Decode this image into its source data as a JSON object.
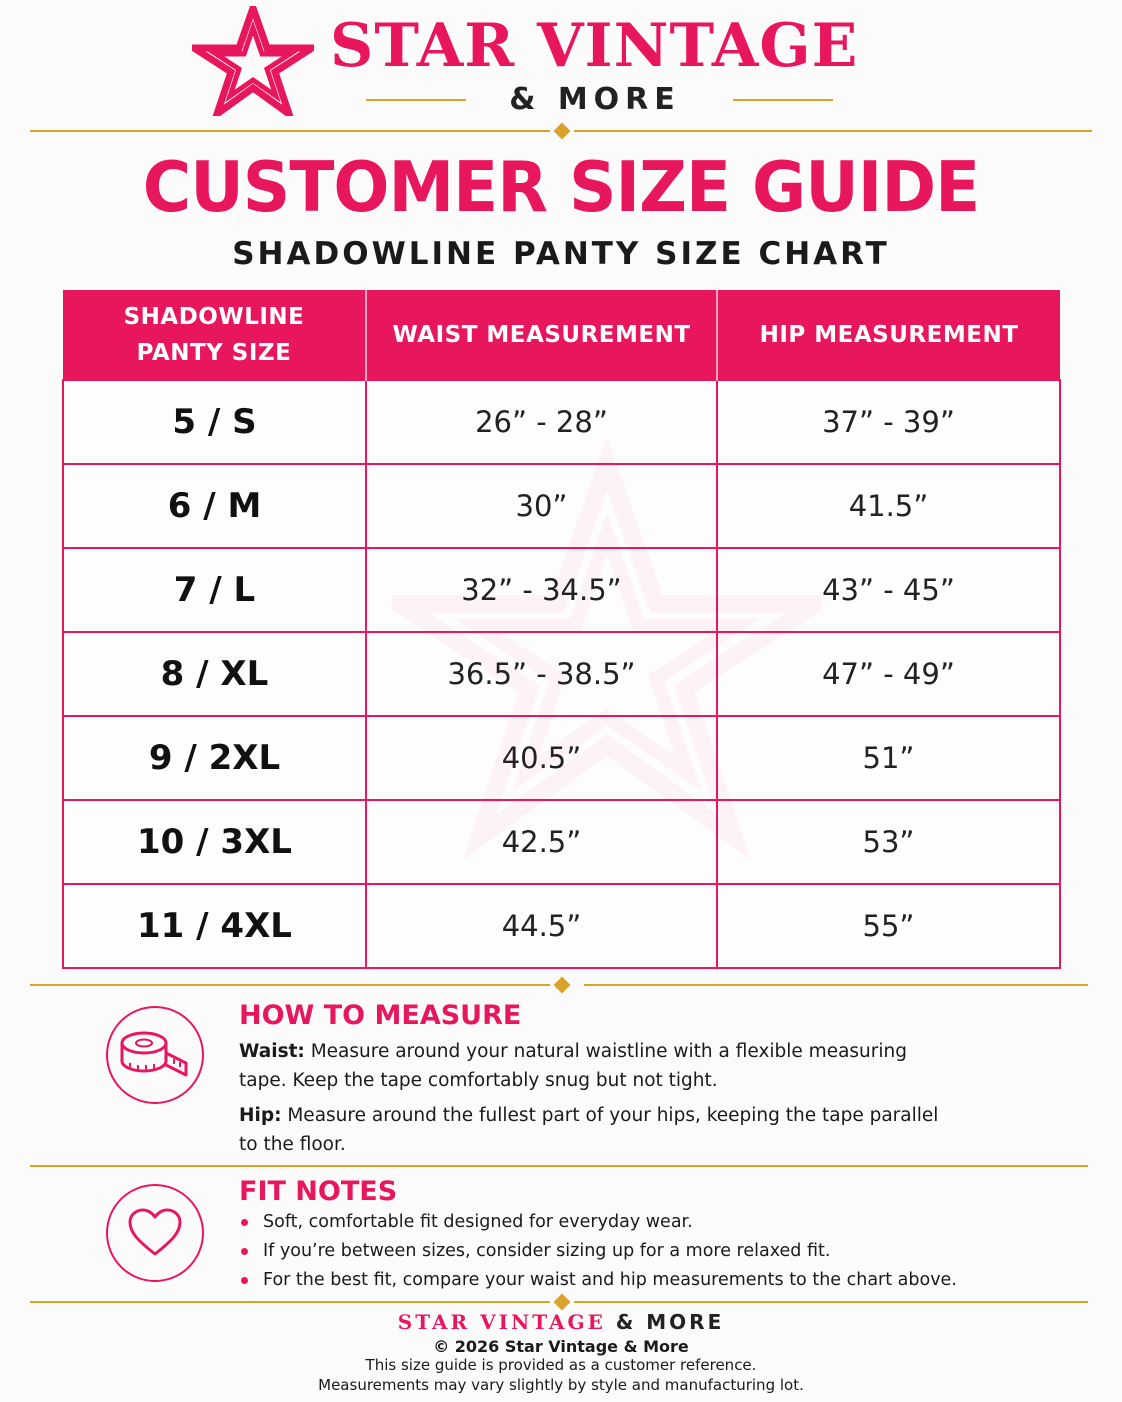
{
  "header": {
    "brand_name": "STAR VINTAGE",
    "brand_sub": "& MORE",
    "title": "CUSTOMER SIZE GUIDE",
    "subtitle": "SHADOWLINE PANTY SIZE CHART",
    "logo_icon": "star-icon",
    "accent_color": "#e8175d",
    "gold_color": "#d9a22b"
  },
  "table": {
    "headers": [
      "SHADOWLINE PANTY SIZE",
      "WAIST MEASUREMENT",
      "HIP MEASUREMENT"
    ],
    "header_lines": [
      "SHADOWLINE",
      "PANTY SIZE"
    ],
    "rows": [
      {
        "size": "5 / S",
        "waist": "26” - 28”",
        "hip": "37” - 39”"
      },
      {
        "size": "6 / M",
        "waist": "30”",
        "hip": "41.5”"
      },
      {
        "size": "7 / L",
        "waist": "32” - 34.5”",
        "hip": "43” - 45”"
      },
      {
        "size": "8 / XL",
        "waist": "36.5” - 38.5”",
        "hip": "47” - 49”"
      },
      {
        "size": "9 / 2XL",
        "waist": "40.5”",
        "hip": "51”"
      },
      {
        "size": "10 / 3XL",
        "waist": "42.5”",
        "hip": "53”"
      },
      {
        "size": "11 / 4XL",
        "waist": "44.5”",
        "hip": "55”"
      }
    ]
  },
  "how_to_measure": {
    "icon": "measuring-tape-icon",
    "heading": "HOW TO MEASURE",
    "waist_label": "Waist:",
    "waist_text": " Measure around your natural waistline with a flexible measuring tape. Keep the tape comfortably snug but not tight.",
    "hip_label": "Hip:",
    "hip_text": " Measure around the fullest part of your hips, keeping the tape parallel to the floor."
  },
  "fit_notes": {
    "icon": "heart-icon",
    "heading": "FIT NOTES",
    "items": [
      "Soft, comfortable fit designed for everyday wear.",
      "If you’re between sizes, consider sizing up for a more relaxed fit.",
      "For the best fit, compare your waist and hip measurements to the chart above."
    ]
  },
  "footer": {
    "brand_a": "STAR VINTAGE",
    "brand_b": "& MORE",
    "copyright": "© 2026 Star Vintage & More",
    "disclaimer_1": "This size guide is provided as a customer reference.",
    "disclaimer_2": "Measurements may vary slightly by style and manufacturing lot."
  }
}
